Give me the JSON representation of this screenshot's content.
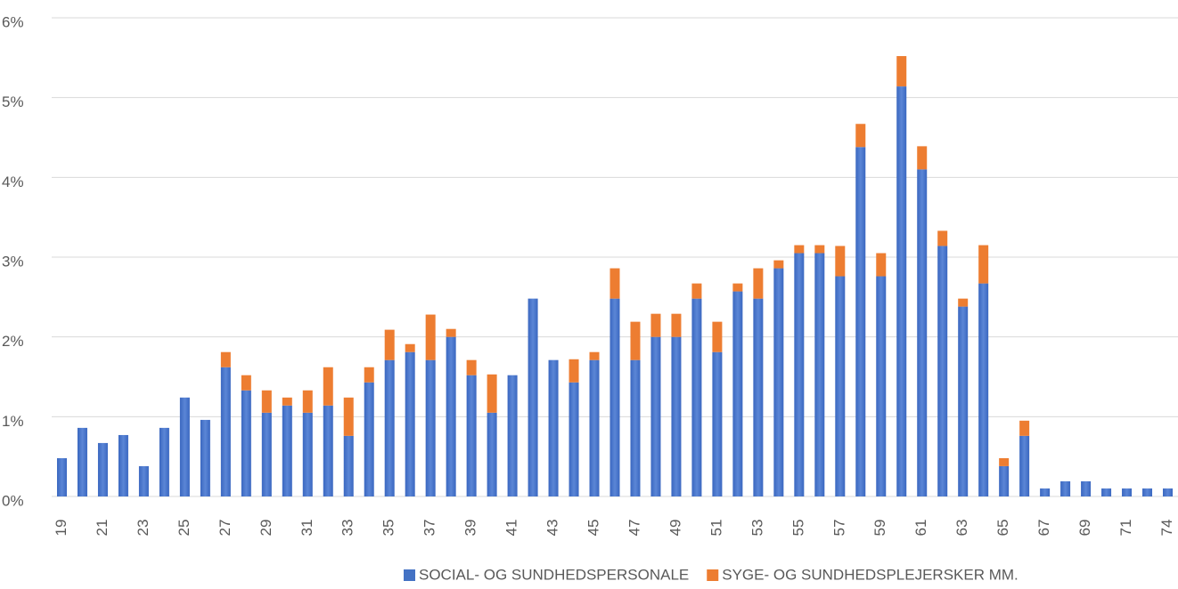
{
  "chart_data": {
    "type": "stacked-bar",
    "categories": [
      "19",
      null,
      "21",
      null,
      "23",
      null,
      "25",
      null,
      "27",
      null,
      "29",
      null,
      "31",
      null,
      "33",
      null,
      "35",
      null,
      "37",
      null,
      "39",
      null,
      "41",
      null,
      "43",
      null,
      "45",
      null,
      "47",
      null,
      "49",
      null,
      "51",
      null,
      "53",
      null,
      "55",
      null,
      "57",
      null,
      "59",
      null,
      "61",
      null,
      "63",
      null,
      "65",
      null,
      "67",
      null,
      "69",
      null,
      "71",
      null,
      "74"
    ],
    "series": [
      {
        "name": "SOCIAL- OG SUNDHEDSPERSONALE",
        "color": "#4472c4",
        "values": [
          0.48,
          0.86,
          0.67,
          0.77,
          0.38,
          0.86,
          1.24,
          0.96,
          1.62,
          1.33,
          1.05,
          1.14,
          1.05,
          1.14,
          0.76,
          1.43,
          1.71,
          1.81,
          1.71,
          2.0,
          1.52,
          1.05,
          1.52,
          2.48,
          1.71,
          1.43,
          1.71,
          2.48,
          1.71,
          2.0,
          2.0,
          2.48,
          1.81,
          2.57,
          2.48,
          2.86,
          3.05,
          3.05,
          2.76,
          4.38,
          2.76,
          5.14,
          4.1,
          3.14,
          2.38,
          2.67,
          0.38,
          0.76,
          0.1,
          0.19,
          0.19,
          0.1,
          0.1,
          0.1,
          0.1
        ]
      },
      {
        "name": "SYGE- OG SUNDHEDSPLEJERSKER MM.",
        "color": "#ed7d31",
        "values": [
          0,
          0,
          0,
          0,
          0,
          0,
          0,
          0,
          0.19,
          0.19,
          0.28,
          0.1,
          0.28,
          0.48,
          0.48,
          0.19,
          0.38,
          0.1,
          0.57,
          0.1,
          0.19,
          0.48,
          0,
          0,
          0,
          0.29,
          0.1,
          0.38,
          0.48,
          0.29,
          0.29,
          0.19,
          0.38,
          0.1,
          0.38,
          0.1,
          0.1,
          0.1,
          0.38,
          0.29,
          0.29,
          0.38,
          0.29,
          0.19,
          0.1,
          0.48,
          0.1,
          0.19,
          0,
          0,
          0,
          0,
          0,
          0,
          0
        ]
      }
    ],
    "ylim": [
      0,
      6
    ],
    "yticks": [
      {
        "value": 0,
        "label": "0%"
      },
      {
        "value": 1,
        "label": "1%"
      },
      {
        "value": 2,
        "label": "2%"
      },
      {
        "value": 3,
        "label": "3%"
      },
      {
        "value": 4,
        "label": "4%"
      },
      {
        "value": 5,
        "label": "5%"
      },
      {
        "value": 6,
        "label": "6%"
      }
    ],
    "grid": true,
    "legend": "bottom"
  }
}
